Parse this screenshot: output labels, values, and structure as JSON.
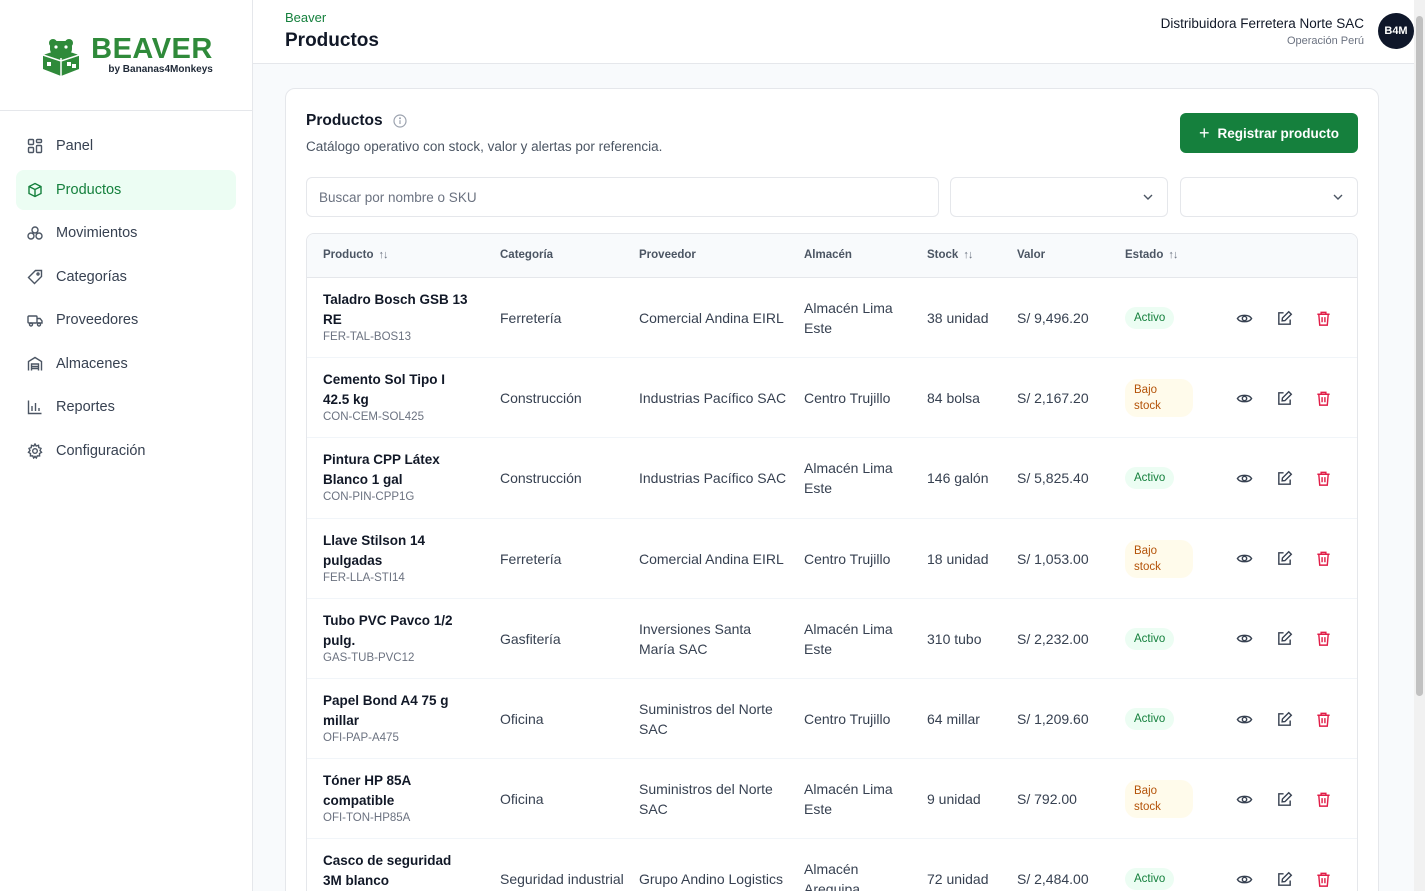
{
  "brand": {
    "name": "BEAVER",
    "tagline": "by Bananas4Monkeys"
  },
  "colors": {
    "accent": "#15803d",
    "brand": "#2f8a3a",
    "danger": "#e11d48"
  },
  "sidebar": {
    "items": [
      {
        "label": "Panel",
        "icon": "grid-icon"
      },
      {
        "label": "Productos",
        "icon": "box-icon",
        "active": true
      },
      {
        "label": "Movimientos",
        "icon": "movements-icon"
      },
      {
        "label": "Categorías",
        "icon": "tag-icon"
      },
      {
        "label": "Proveedores",
        "icon": "truck-icon"
      },
      {
        "label": "Almacenes",
        "icon": "warehouse-icon"
      },
      {
        "label": "Reportes",
        "icon": "bar-chart-icon"
      },
      {
        "label": "Configuración",
        "icon": "gear-icon"
      }
    ]
  },
  "header": {
    "breadcrumb": "Beaver",
    "title": "Productos",
    "org_name": "Distribuidora Ferretera Norte SAC",
    "org_sub": "Operación Perú",
    "avatar": "B4M"
  },
  "card": {
    "title": "Productos",
    "subtitle": "Catálogo operativo con stock, valor y alertas por referencia.",
    "primary_button": "Registrar producto",
    "search_placeholder": "Buscar por nombre o SKU",
    "search_value": ""
  },
  "table": {
    "headers": {
      "producto": "Producto",
      "categoria": "Categoría",
      "proveedor": "Proveedor",
      "almacen": "Almacén",
      "stock": "Stock",
      "valor": "Valor",
      "estado": "Estado"
    },
    "rows": [
      {
        "name": "Taladro Bosch GSB 13 RE",
        "sku": "FER-TAL-BOS13",
        "category": "Ferretería",
        "supplier": "Comercial Andina EIRL",
        "warehouse": "Almacén Lima Este",
        "stock": "38 unidad",
        "value": "S/ 9,496.20",
        "status": "Activo",
        "status_kind": "ok"
      },
      {
        "name": "Cemento Sol Tipo I 42.5 kg",
        "sku": "CON-CEM-SOL425",
        "category": "Construcción",
        "supplier": "Industrias Pacífico SAC",
        "warehouse": "Centro Trujillo",
        "stock": "84 bolsa",
        "value": "S/ 2,167.20",
        "status": "Bajo stock",
        "status_kind": "low"
      },
      {
        "name": "Pintura CPP Látex Blanco 1 gal",
        "sku": "CON-PIN-CPP1G",
        "category": "Construcción",
        "supplier": "Industrias Pacífico SAC",
        "warehouse": "Almacén Lima Este",
        "stock": "146 galón",
        "value": "S/ 5,825.40",
        "status": "Activo",
        "status_kind": "ok"
      },
      {
        "name": "Llave Stilson 14 pulgadas",
        "sku": "FER-LLA-STI14",
        "category": "Ferretería",
        "supplier": "Comercial Andina EIRL",
        "warehouse": "Centro Trujillo",
        "stock": "18 unidad",
        "value": "S/ 1,053.00",
        "status": "Bajo stock",
        "status_kind": "low"
      },
      {
        "name": "Tubo PVC Pavco 1/2 pulg.",
        "sku": "GAS-TUB-PVC12",
        "category": "Gasfitería",
        "supplier": "Inversiones Santa María SAC",
        "warehouse": "Almacén Lima Este",
        "stock": "310 tubo",
        "value": "S/ 2,232.00",
        "status": "Activo",
        "status_kind": "ok"
      },
      {
        "name": "Papel Bond A4 75 g millar",
        "sku": "OFI-PAP-A475",
        "category": "Oficina",
        "supplier": "Suministros del Norte SAC",
        "warehouse": "Centro Trujillo",
        "stock": "64 millar",
        "value": "S/ 1,209.60",
        "status": "Activo",
        "status_kind": "ok"
      },
      {
        "name": "Tóner HP 85A compatible",
        "sku": "OFI-TON-HP85A",
        "category": "Oficina",
        "supplier": "Suministros del Norte SAC",
        "warehouse": "Almacén Lima Este",
        "stock": "9 unidad",
        "value": "S/ 792.00",
        "status": "Bajo stock",
        "status_kind": "low"
      },
      {
        "name": "Casco de seguridad 3M blanco",
        "sku": "",
        "category": "Seguridad industrial",
        "supplier": "Grupo Andino Logistics",
        "warehouse": "Almacén Arequipa",
        "stock": "72 unidad",
        "value": "S/ 2,484.00",
        "status": "Activo",
        "status_kind": "ok"
      }
    ]
  }
}
